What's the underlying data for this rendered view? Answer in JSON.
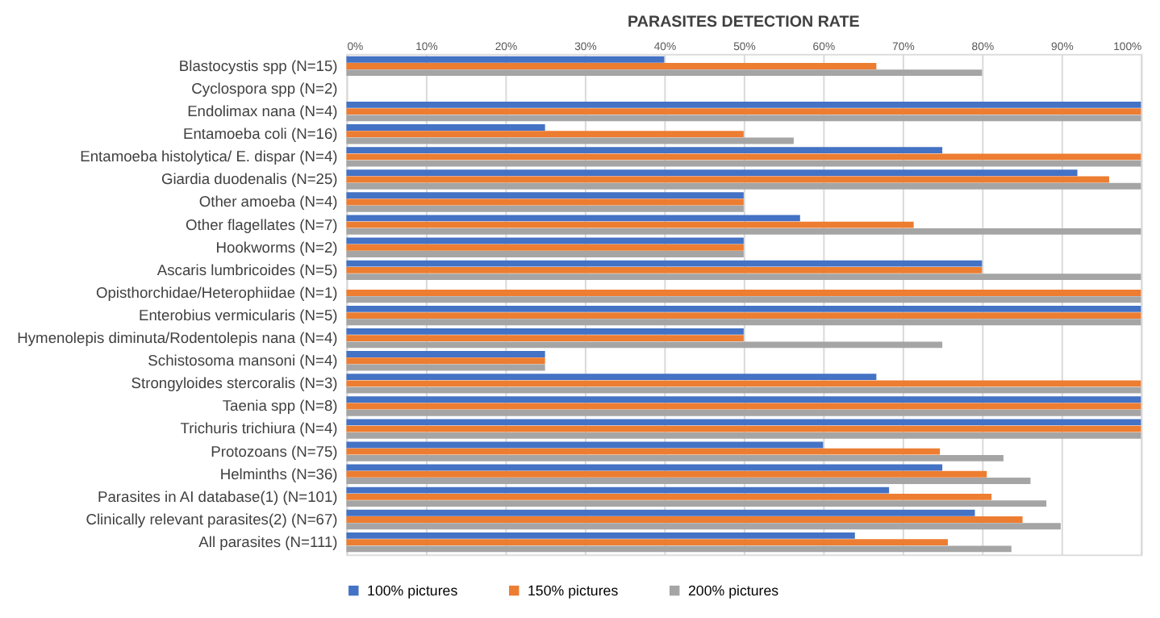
{
  "chart_data": {
    "type": "bar",
    "orientation": "horizontal",
    "title": "PARASITES DETECTION RATE",
    "categories": [
      "Blastocystis spp (N=15)",
      "Cyclospora spp (N=2)",
      "Endolimax nana (N=4)",
      "Entamoeba coli (N=16)",
      "Entamoeba histolytica/ E. dispar (N=4)",
      "Giardia duodenalis (N=25)",
      "Other amoeba (N=4)",
      "Other flagellates (N=7)",
      "Hookworms (N=2)",
      "Ascaris lumbricoides (N=5)",
      "Opisthorchidae/Heterophiidae  (N=1)",
      "Enterobius vermicularis (N=5)",
      "Hymenolepis  diminuta/Rodentolepis nana  (N=4)",
      "Schistosoma mansoni (N=4)",
      "Strongyloides stercoralis (N=3)",
      "Taenia spp (N=8)",
      "Trichuris trichiura (N=4)",
      "Protozoans (N=75)",
      "Helminths (N=36)",
      "Parasites in AI database(1) (N=101)",
      "Clinically relevant parasites(2) (N=67)",
      "All parasites (N=111)"
    ],
    "series": [
      {
        "name": "100% pictures",
        "color": "#4472c4",
        "values": [
          40,
          0,
          100,
          25,
          75,
          92,
          50,
          57.1,
          50,
          80,
          0,
          100,
          50,
          25,
          66.7,
          100,
          100,
          60,
          75,
          68.3,
          79.1,
          64
        ]
      },
      {
        "name": "150% pictures",
        "color": "#ed7d31",
        "values": [
          66.7,
          0,
          100,
          50,
          100,
          96,
          50,
          71.4,
          50,
          80,
          100,
          100,
          50,
          25,
          100,
          100,
          100,
          74.7,
          80.6,
          81.2,
          85.1,
          75.7
        ]
      },
      {
        "name": "200% pictures",
        "color": "#a5a5a5",
        "values": [
          80,
          0,
          100,
          56.3,
          100,
          100,
          50,
          100,
          50,
          100,
          100,
          100,
          75,
          25,
          100,
          100,
          100,
          82.7,
          86.1,
          88.1,
          89.9,
          83.7
        ]
      }
    ],
    "xlim": [
      0,
      100
    ],
    "xticks": [
      {
        "value": 0,
        "label": "0%"
      },
      {
        "value": 10,
        "label": "10%"
      },
      {
        "value": 20,
        "label": "20%"
      },
      {
        "value": 30,
        "label": "30%"
      },
      {
        "value": 40,
        "label": "40%"
      },
      {
        "value": 50,
        "label": "50%"
      },
      {
        "value": 60,
        "label": "60%"
      },
      {
        "value": 70,
        "label": "70%"
      },
      {
        "value": 80,
        "label": "80%"
      },
      {
        "value": 90,
        "label": "90%"
      },
      {
        "value": 100,
        "label": "100%"
      }
    ],
    "grid": "x",
    "legend": "bottom"
  }
}
